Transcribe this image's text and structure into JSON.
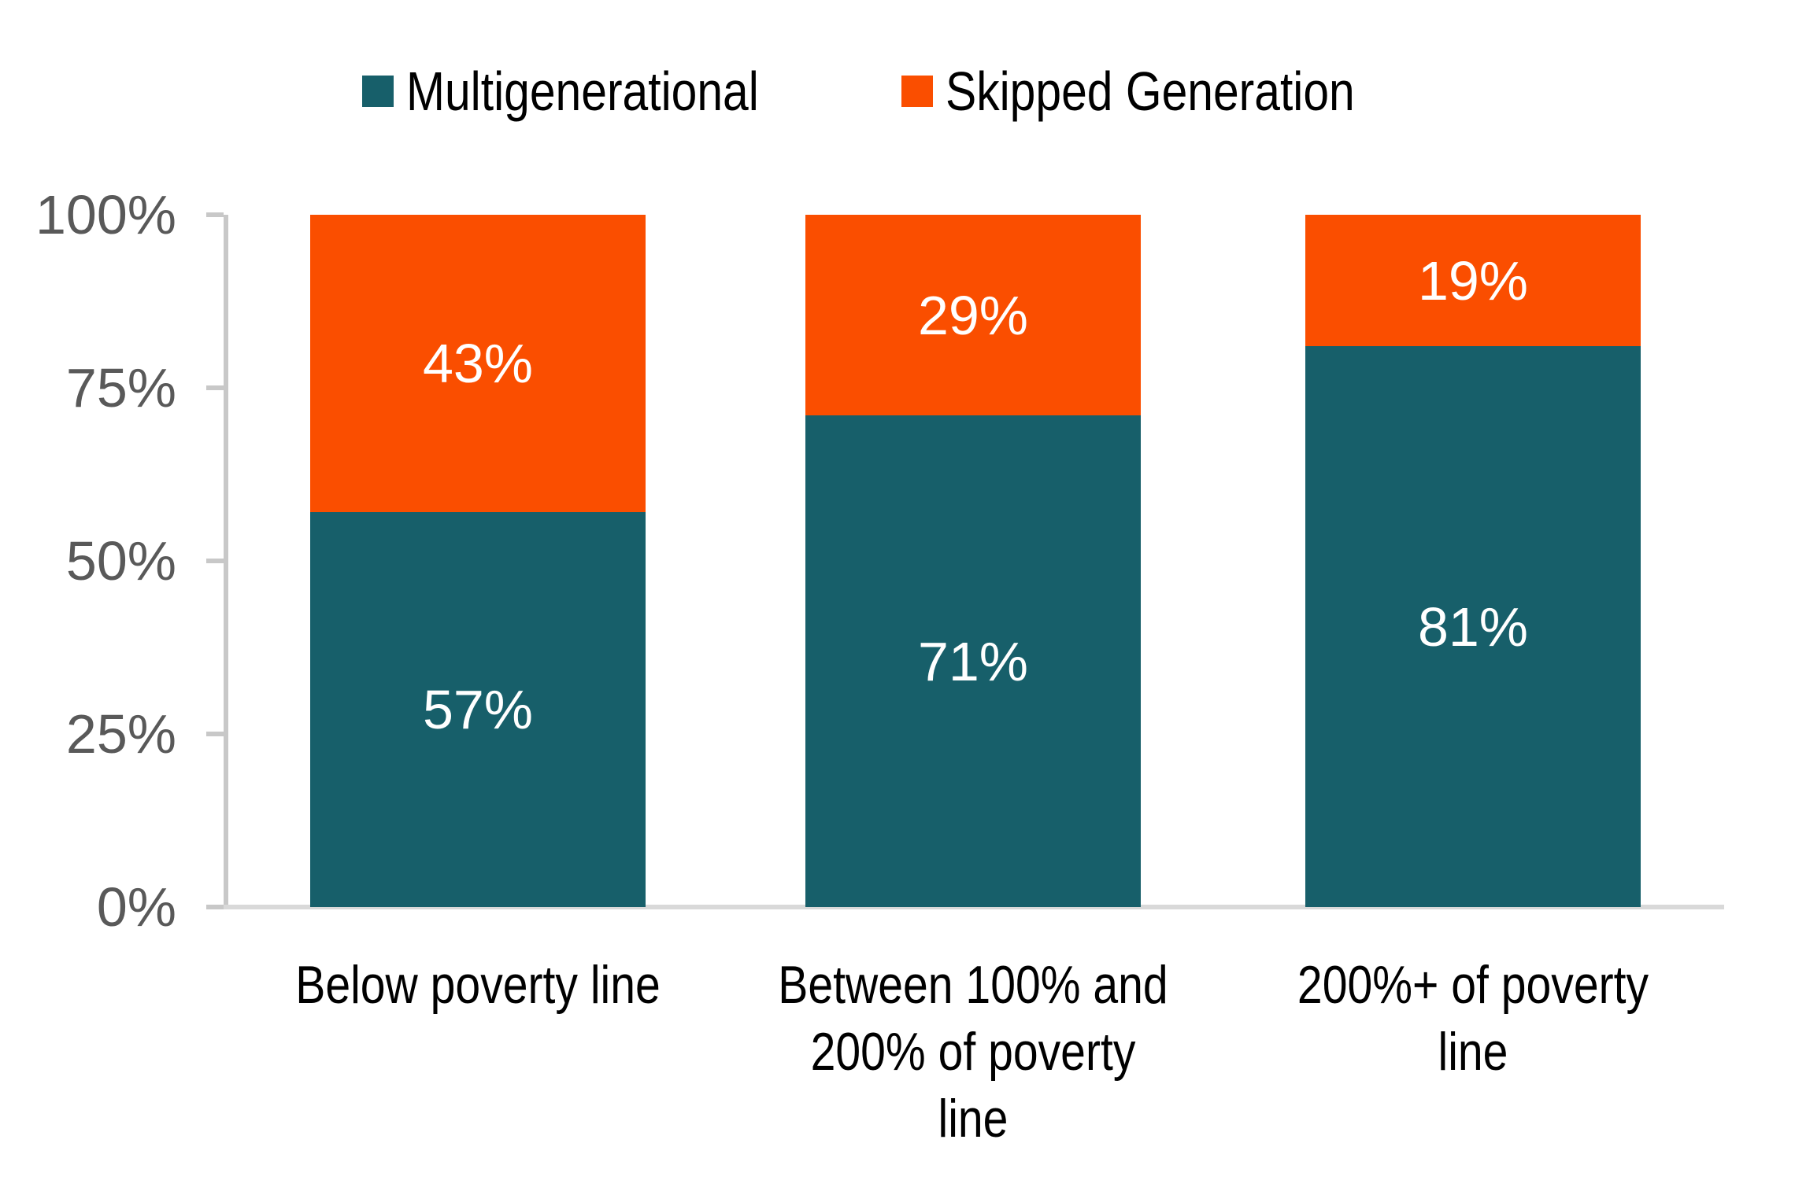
{
  "chart_data": {
    "type": "bar",
    "stacked": true,
    "title": "",
    "xlabel": "",
    "ylabel": "",
    "ylim": [
      0,
      100
    ],
    "grid": false,
    "legend_position": "top",
    "categories": [
      "Below poverty line",
      "Between 100% and 200% of poverty line",
      "200%+ of poverty line"
    ],
    "category_label_lines": [
      [
        "Below poverty line"
      ],
      [
        "Between 100% and",
        "200% of poverty",
        "line"
      ],
      [
        "200%+ of poverty",
        "line"
      ]
    ],
    "y_ticks": [
      {
        "value": 0,
        "label": "0%"
      },
      {
        "value": 25,
        "label": "25%"
      },
      {
        "value": 50,
        "label": "50%"
      },
      {
        "value": 75,
        "label": "75%"
      },
      {
        "value": 100,
        "label": "100%"
      }
    ],
    "series": [
      {
        "name": "Multigenerational",
        "key": "multigenerational",
        "color": "#175F6A",
        "values": [
          57,
          71,
          81
        ],
        "data_labels": [
          "57%",
          "71%",
          "81%"
        ]
      },
      {
        "name": "Skipped Generation",
        "key": "skipped-generation",
        "color": "#FA4E00",
        "values": [
          43,
          29,
          19
        ],
        "data_labels": [
          "43%",
          "29%",
          "19%"
        ]
      }
    ]
  },
  "colors": {
    "teal": "#175F6A",
    "orange": "#FA4E00",
    "tick_text": "#595959",
    "axis_line": "#C8C8C8",
    "baseline": "#D9D9D9",
    "data_label_text": "#FFFFFF",
    "category_text": "#000000",
    "background": "#FFFFFF"
  }
}
